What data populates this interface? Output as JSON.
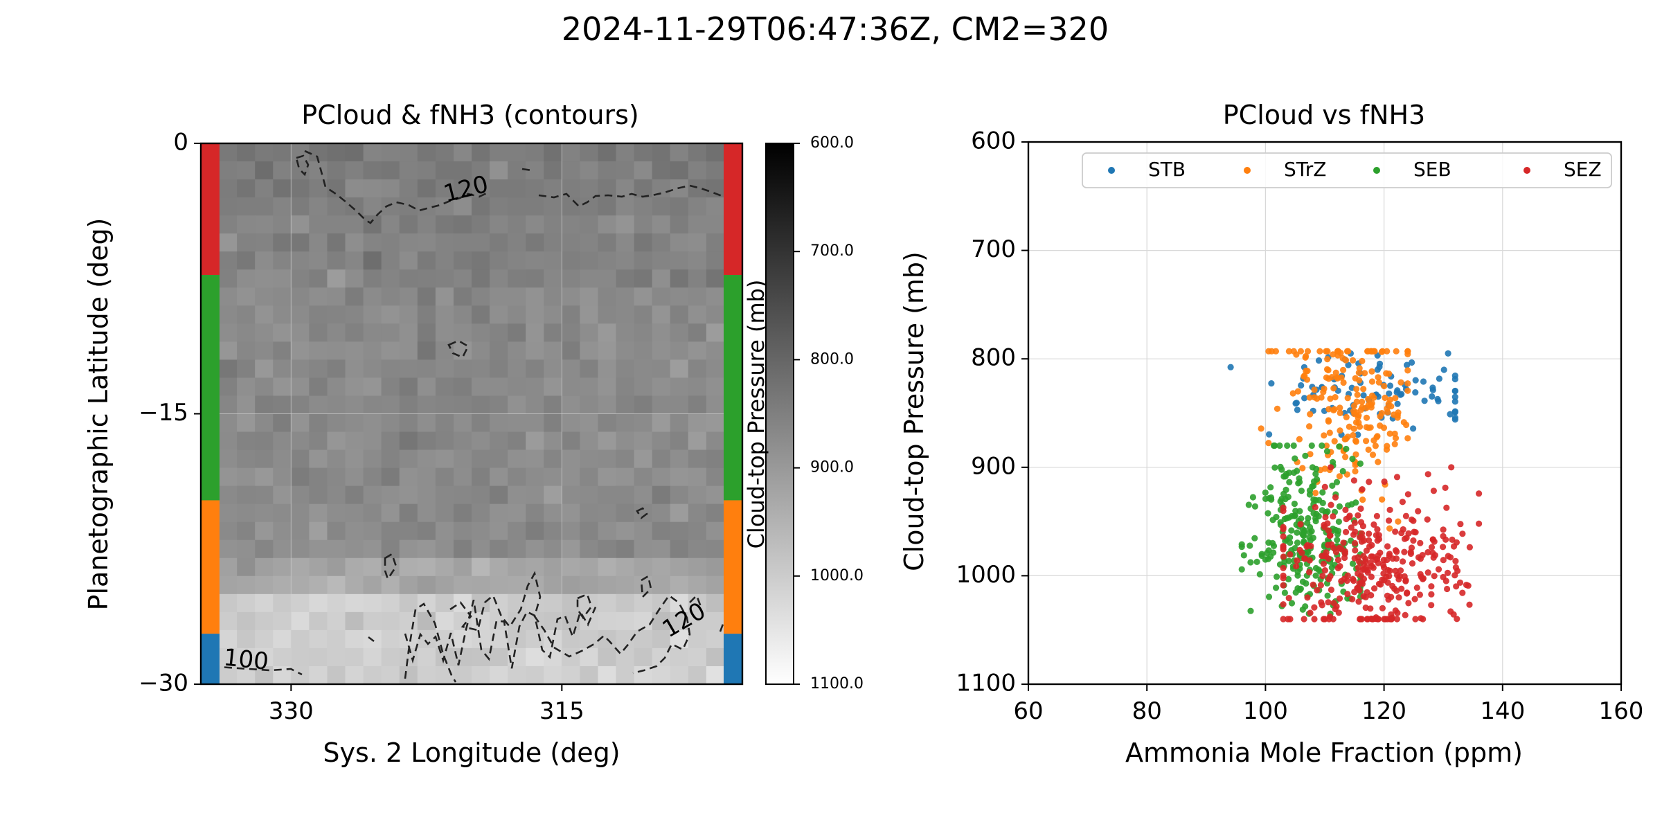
{
  "figure": {
    "suptitle": "2024-11-29T06:47:36Z, CM2=320"
  },
  "chart_data": [
    {
      "type": "heatmap",
      "title": "PCloud & fNH3 (contours)",
      "xlabel": "Sys. 2 Longitude (deg)",
      "ylabel": "Planetographic Latitude (deg)",
      "xlim": [
        335,
        305
      ],
      "ylim": [
        -30,
        0
      ],
      "xticks": [
        330,
        315
      ],
      "xticklabels": [
        "330",
        "315"
      ],
      "yticks": [
        0,
        -15,
        -30
      ],
      "yticklabels": [
        "0",
        "−15",
        "−30"
      ],
      "colorbar": {
        "label": "Cloud-top Pressure (mb)",
        "min": 600,
        "max": 1100,
        "ticks": [
          600,
          700,
          800,
          900,
          1000,
          1100
        ],
        "ticklabels": [
          "600.0",
          "700.0",
          "800.0",
          "900.0",
          "1000.0",
          "1100.0"
        ],
        "cmap": "gray_r"
      },
      "grid": "30x30 cells; ~835 mb near 0 to -4 deg, ~870 mb -4 to -25 deg, ~1000 mb -25 to -30 deg",
      "lat_bands": [
        {
          "name": "SEZ",
          "from": 0,
          "to": -7.3,
          "color": "#d62728"
        },
        {
          "name": "SEB",
          "from": -7.3,
          "to": -19.8,
          "color": "#2ca02c"
        },
        {
          "name": "STrZ",
          "from": -19.8,
          "to": -27.2,
          "color": "#ff7f0e"
        },
        {
          "name": "STB",
          "from": -27.2,
          "to": -30,
          "color": "#1f77b4"
        }
      ],
      "contour_labels": [
        {
          "text": "120",
          "lon": 320.3,
          "lat": -2.6,
          "angle": -14
        },
        {
          "text": "120",
          "lon": 308.2,
          "lat": -26.5,
          "angle": -30
        },
        {
          "text": "100",
          "lon": 332.5,
          "lat": -28.7,
          "angle": 6
        }
      ]
    },
    {
      "type": "scatter",
      "title": "PCloud vs fNH3",
      "xlabel": "Ammonia Mole Fraction (ppm)",
      "ylabel": "Cloud-top Pressure (mb)",
      "xlim": [
        60,
        160
      ],
      "ylim": [
        1100,
        600
      ],
      "xticks": [
        60,
        80,
        100,
        120,
        140,
        160
      ],
      "yticks": [
        600,
        700,
        800,
        900,
        1000,
        1100
      ],
      "grid": true,
      "legend": "upper-right",
      "series": [
        {
          "name": "STB",
          "color": "#1f77b4",
          "count": 90,
          "x_range": [
            91,
            132
          ],
          "y_range": [
            795,
            870
          ],
          "x_center": 120,
          "y_center": 830
        },
        {
          "name": "STrZ",
          "color": "#ff7f0e",
          "count": 200,
          "x_range": [
            98,
            124
          ],
          "y_range": [
            793,
            980
          ],
          "x_center": 115,
          "y_center": 840
        },
        {
          "name": "SEB",
          "color": "#2ca02c",
          "count": 260,
          "x_range": [
            96,
            116
          ],
          "y_range": [
            880,
            1035
          ],
          "x_center": 107,
          "y_center": 960
        },
        {
          "name": "SEZ",
          "color": "#d62728",
          "count": 330,
          "x_range": [
            103,
            136
          ],
          "y_range": [
            900,
            1040
          ],
          "x_center": 118,
          "y_center": 990
        }
      ]
    }
  ]
}
